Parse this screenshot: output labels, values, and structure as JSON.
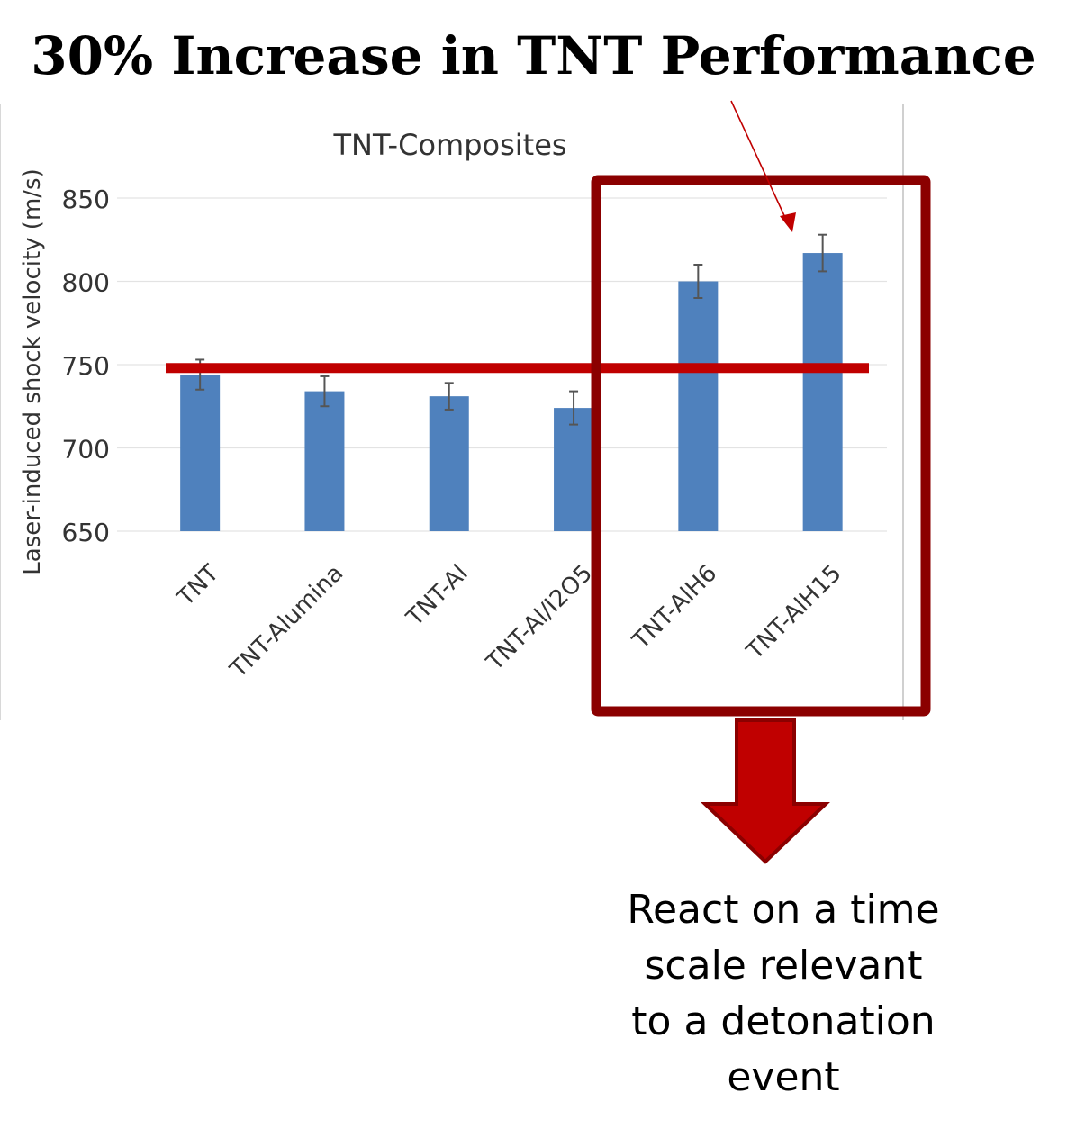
{
  "headline": "30% Increase in TNT Performance",
  "chart_data": {
    "type": "bar",
    "title": "TNT-Composites",
    "xlabel": "",
    "ylabel": "Laser-induced shock velocity (m/s)",
    "categories": [
      "TNT",
      "TNT-Alumina",
      "TNT-Al",
      "TNT-Al/I2O5",
      "TNT-AlH6",
      "TNT-AlH15"
    ],
    "values": [
      744,
      734,
      731,
      724,
      800,
      817
    ],
    "error": [
      9,
      9,
      8,
      10,
      10,
      11
    ],
    "ylim": [
      650,
      850
    ],
    "yticks": [
      650,
      700,
      750,
      800,
      850
    ],
    "reference_line": 748,
    "grid": true,
    "colors": {
      "bar": "#4f81bd",
      "error": "#555555",
      "reference": "#c00000",
      "highlight_box": "#8b0000",
      "arrow": "#c00000"
    }
  },
  "callout": {
    "lines": [
      "React on a time",
      "scale relevant",
      "to a detonation",
      "event"
    ]
  }
}
